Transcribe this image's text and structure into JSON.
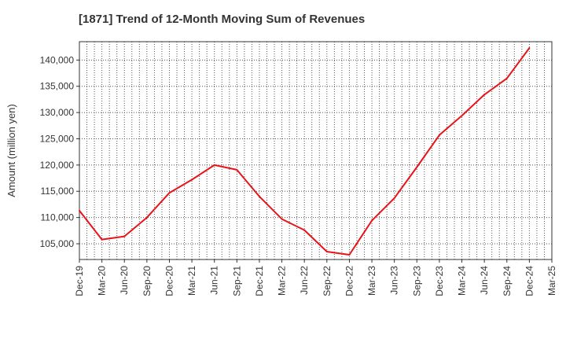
{
  "chart_data": {
    "type": "line",
    "title": "[1871]  Trend of 12-Month Moving Sum of Revenues",
    "xlabel": "",
    "ylabel": "Amount (million yen)",
    "x_ticks": [
      "Dec-19",
      "Mar-20",
      "Jun-20",
      "Sep-20",
      "Dec-20",
      "Mar-21",
      "Jun-21",
      "Sep-21",
      "Dec-21",
      "Mar-22",
      "Jun-22",
      "Sep-22",
      "Dec-22",
      "Mar-23",
      "Jun-23",
      "Sep-23",
      "Dec-23",
      "Mar-24",
      "Jun-24",
      "Sep-24",
      "Dec-24",
      "Mar-25"
    ],
    "y_ticks": [
      105000,
      110000,
      115000,
      120000,
      125000,
      130000,
      135000,
      140000
    ],
    "y_tick_labels": [
      "105,000",
      "110,000",
      "115,000",
      "120,000",
      "125,000",
      "130,000",
      "135,000",
      "140,000"
    ],
    "ylim": [
      102000,
      143500
    ],
    "grid": true,
    "series": [
      {
        "color": "#e8141a",
        "x": [
          "Dec-19",
          "Mar-20",
          "Jun-20",
          "Sep-20",
          "Dec-20",
          "Mar-21",
          "Jun-21",
          "Sep-21",
          "Dec-21",
          "Mar-22",
          "Jun-22",
          "Sep-22",
          "Dec-22",
          "Mar-23",
          "Jun-23",
          "Sep-23",
          "Dec-23",
          "Mar-24",
          "Jun-24",
          "Sep-24",
          "Dec-24"
        ],
        "values": [
          111300,
          105800,
          106400,
          110000,
          114700,
          117200,
          120000,
          119100,
          114000,
          109700,
          107600,
          103500,
          102900,
          109400,
          113700,
          119600,
          125700,
          129400,
          133400,
          136500,
          142300
        ]
      }
    ]
  }
}
